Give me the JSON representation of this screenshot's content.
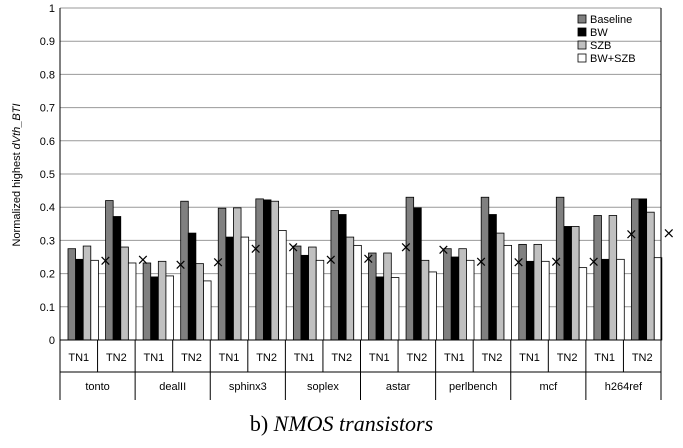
{
  "caption": {
    "prefix": "b) ",
    "text": "NMOS transistors"
  },
  "chart_data": {
    "type": "bar",
    "ylabel_prefix": "Normalized highest ",
    "ylabel_var": "dVth_BTI",
    "ylim": [
      0,
      1
    ],
    "yticks": [
      "0",
      "0.1",
      "0.2",
      "0.3",
      "0.4",
      "0.5",
      "0.6",
      "0.7",
      "0.8",
      "0.9",
      "1"
    ],
    "groups": [
      "tonto",
      "dealII",
      "sphinx3",
      "soplex",
      "astar",
      "perlbench",
      "mcf",
      "h264ref"
    ],
    "subgroups": [
      "TN1",
      "TN2"
    ],
    "legend_position": "top-right",
    "series": [
      {
        "name": "Baseline",
        "color": "#808080",
        "values": [
          0.275,
          0.42,
          0.232,
          0.418,
          0.397,
          0.425,
          0.283,
          0.39,
          0.262,
          0.43,
          0.275,
          0.43,
          0.288,
          0.43,
          0.375,
          0.425
        ]
      },
      {
        "name": "BW",
        "color": "#000000",
        "values": [
          0.243,
          0.372,
          0.19,
          0.322,
          0.31,
          0.422,
          0.255,
          0.378,
          0.19,
          0.398,
          0.25,
          0.378,
          0.237,
          0.342,
          0.243,
          0.425
        ]
      },
      {
        "name": "SZB",
        "color": "#c0c0c0",
        "values": [
          0.283,
          0.28,
          0.237,
          0.23,
          0.398,
          0.418,
          0.28,
          0.31,
          0.262,
          0.24,
          0.275,
          0.322,
          0.288,
          0.342,
          0.375,
          0.385
        ]
      },
      {
        "name": "BW+SZB",
        "color": "#ffffff",
        "values": [
          0.24,
          0.232,
          0.193,
          0.178,
          0.31,
          0.33,
          0.24,
          0.285,
          0.188,
          0.205,
          0.24,
          0.285,
          0.237,
          0.218,
          0.243,
          0.248
        ]
      }
    ],
    "markers": {
      "symbol": "×",
      "values": [
        0.24,
        0.243,
        0.228,
        0.235,
        0.275,
        0.28,
        0.242,
        0.245,
        0.28,
        0.272,
        0.237,
        0.235,
        0.237,
        0.237,
        0.32,
        0.322
      ]
    }
  }
}
